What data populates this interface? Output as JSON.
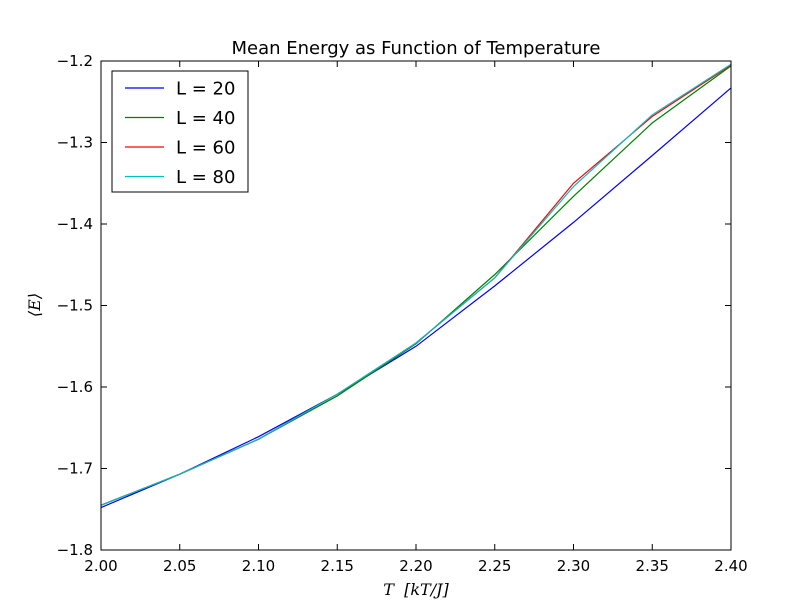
{
  "chart_data": {
    "type": "line",
    "title": "Mean Energy as Function of Temperature",
    "xlabel": "T  [kT/J]",
    "ylabel": "⟨E⟩",
    "xlim": [
      2.0,
      2.4
    ],
    "ylim": [
      -1.8,
      -1.2
    ],
    "xticks": [
      2.0,
      2.05,
      2.1,
      2.15,
      2.2,
      2.25,
      2.3,
      2.35,
      2.4
    ],
    "xtick_labels": [
      "2.00",
      "2.05",
      "2.10",
      "2.15",
      "2.20",
      "2.25",
      "2.30",
      "2.35",
      "2.40"
    ],
    "yticks": [
      -1.8,
      -1.7,
      -1.6,
      -1.5,
      -1.4,
      -1.3,
      -1.2
    ],
    "ytick_labels": [
      "−1.8",
      "−1.7",
      "−1.6",
      "−1.5",
      "−1.4",
      "−1.3",
      "−1.2"
    ],
    "grid": false,
    "legend_position": "top-left",
    "x": [
      2.0,
      2.05,
      2.1,
      2.15,
      2.2,
      2.25,
      2.3,
      2.35,
      2.4
    ],
    "series": [
      {
        "name": "L = 20",
        "color": "#0000ff",
        "values": [
          -1.748,
          -1.707,
          -1.661,
          -1.609,
          -1.55,
          -1.476,
          -1.398,
          -1.316,
          -1.233
        ]
      },
      {
        "name": "L = 40",
        "color": "#008000",
        "values": [
          -1.745,
          -1.707,
          -1.664,
          -1.611,
          -1.547,
          -1.462,
          -1.366,
          -1.276,
          -1.206
        ]
      },
      {
        "name": "L = 60",
        "color": "#ff0000",
        "values": [
          -1.745,
          -1.707,
          -1.664,
          -1.609,
          -1.546,
          -1.466,
          -1.35,
          -1.268,
          -1.205
        ]
      },
      {
        "name": "L = 80",
        "color": "#00bfbf",
        "values": [
          -1.745,
          -1.707,
          -1.664,
          -1.609,
          -1.546,
          -1.466,
          -1.354,
          -1.266,
          -1.204
        ]
      }
    ]
  }
}
